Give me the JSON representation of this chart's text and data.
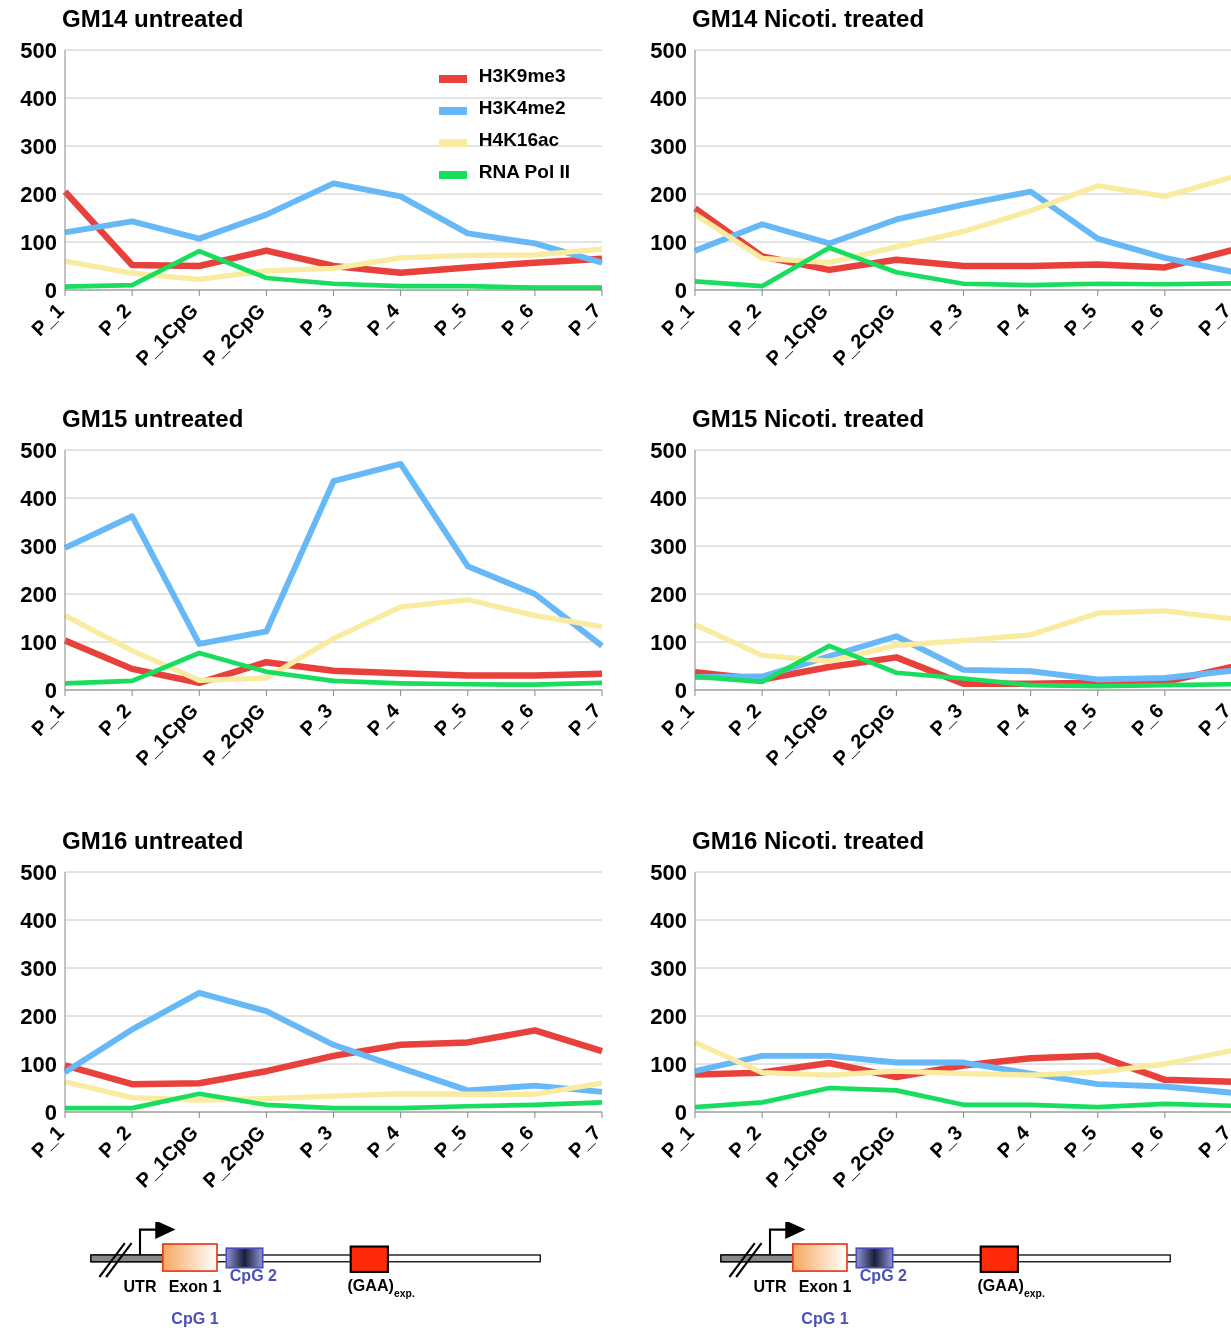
{
  "chart_data": [
    {
      "type": "line",
      "title": "GM14 untreated",
      "categories": [
        "P_1",
        "P_2",
        "P_1CpG",
        "P_2CpG",
        "P_3",
        "P_4",
        "P_5",
        "P_6",
        "P_7"
      ],
      "ylim": [
        0,
        500
      ],
      "yticks": [
        0,
        100,
        200,
        300,
        400,
        500
      ],
      "grid": "y",
      "legend": "top right",
      "series": [
        {
          "name": "H3K9me3",
          "color": "#e8413c",
          "values": [
            205,
            52,
            50,
            82,
            50,
            36,
            47,
            57,
            65
          ]
        },
        {
          "name": "H3K4me2",
          "color": "#66b8f7",
          "values": [
            120,
            143,
            107,
            157,
            222,
            195,
            118,
            97,
            57
          ]
        },
        {
          "name": "H4K16ac",
          "color": "#f9eba0",
          "values": [
            60,
            35,
            22,
            40,
            45,
            67,
            72,
            73,
            85
          ]
        },
        {
          "name": "RNA Pol II",
          "color": "#19dd5e",
          "values": [
            7,
            10,
            81,
            25,
            13,
            8,
            8,
            5,
            5
          ]
        }
      ]
    },
    {
      "type": "line",
      "title": "GM14 Nicoti. treated",
      "categories": [
        "P_1",
        "P_2",
        "P_1CpG",
        "P_2CpG",
        "P_3",
        "P_4",
        "P_5",
        "P_6",
        "P_7"
      ],
      "ylim": [
        0,
        500
      ],
      "yticks": [
        0,
        100,
        200,
        300,
        400,
        500
      ],
      "grid": "y",
      "series": [
        {
          "color": "#e8413c",
          "values": [
            170,
            70,
            42,
            63,
            50,
            50,
            53,
            47,
            83
          ]
        },
        {
          "color": "#66b8f7",
          "values": [
            82,
            137,
            97,
            147,
            178,
            205,
            107,
            67,
            38
          ]
        },
        {
          "color": "#f9eba0",
          "values": [
            158,
            66,
            57,
            90,
            122,
            165,
            217,
            195,
            235
          ]
        },
        {
          "color": "#19dd5e",
          "values": [
            18,
            8,
            88,
            37,
            13,
            10,
            13,
            12,
            14
          ]
        }
      ]
    },
    {
      "type": "line",
      "title": "GM15 untreated",
      "categories": [
        "P_1",
        "P_2",
        "P_1CpG",
        "P_2CpG",
        "P_3",
        "P_4",
        "P_5",
        "P_6",
        "P_7"
      ],
      "ylim": [
        0,
        500
      ],
      "yticks": [
        0,
        100,
        200,
        300,
        400,
        500
      ],
      "grid": "y",
      "series": [
        {
          "color": "#e8413c",
          "values": [
            103,
            44,
            15,
            58,
            40,
            35,
            30,
            30,
            34
          ]
        },
        {
          "color": "#66b8f7",
          "values": [
            296,
            362,
            96,
            122,
            435,
            471,
            258,
            200,
            92
          ]
        },
        {
          "color": "#f9eba0",
          "values": [
            155,
            82,
            20,
            25,
            107,
            173,
            188,
            155,
            132
          ]
        },
        {
          "color": "#19dd5e",
          "values": [
            14,
            19,
            77,
            38,
            19,
            14,
            12,
            11,
            15
          ]
        }
      ]
    },
    {
      "type": "line",
      "title": "GM15 Nicoti. treated",
      "categories": [
        "P_1",
        "P_2",
        "P_1CpG",
        "P_2CpG",
        "P_3",
        "P_4",
        "P_5",
        "P_6",
        "P_7"
      ],
      "ylim": [
        0,
        500
      ],
      "yticks": [
        0,
        100,
        200,
        300,
        400,
        500
      ],
      "grid": "y",
      "series": [
        {
          "color": "#e8413c",
          "values": [
            37,
            22,
            48,
            68,
            13,
            13,
            15,
            17,
            48
          ]
        },
        {
          "color": "#66b8f7",
          "values": [
            27,
            28,
            70,
            112,
            42,
            39,
            22,
            25,
            40
          ]
        },
        {
          "color": "#f9eba0",
          "values": [
            136,
            72,
            60,
            93,
            103,
            115,
            160,
            165,
            148
          ]
        },
        {
          "color": "#19dd5e",
          "values": [
            28,
            17,
            92,
            36,
            24,
            10,
            8,
            10,
            12
          ]
        }
      ]
    },
    {
      "type": "line",
      "title": "GM16 untreated",
      "categories": [
        "P_1",
        "P_2",
        "P_1CpG",
        "P_2CpG",
        "P_3",
        "P_4",
        "P_5",
        "P_6",
        "P_7"
      ],
      "ylim": [
        0,
        500
      ],
      "yticks": [
        0,
        100,
        200,
        300,
        400,
        500
      ],
      "grid": "y",
      "annotations": [
        "UTR",
        "Exon 1",
        "CpG 2",
        "(GAA)$_{exp.}$",
        "CpG 1"
      ],
      "series": [
        {
          "color": "#e8413c",
          "values": [
            97,
            58,
            60,
            85,
            117,
            140,
            145,
            170,
            127
          ]
        },
        {
          "color": "#66b8f7",
          "values": [
            83,
            172,
            248,
            210,
            140,
            92,
            45,
            55,
            42
          ]
        },
        {
          "color": "#f9eba0",
          "values": [
            63,
            30,
            25,
            28,
            33,
            38,
            37,
            37,
            60
          ]
        },
        {
          "color": "#19dd5e",
          "values": [
            8,
            8,
            38,
            15,
            8,
            8,
            12,
            15,
            20
          ]
        }
      ]
    },
    {
      "type": "line",
      "title": "GM16 Nicoti. treated",
      "categories": [
        "P_1",
        "P_2",
        "P_1CpG",
        "P_2CpG",
        "P_3",
        "P_4",
        "P_5",
        "P_6",
        "P_7"
      ],
      "ylim": [
        0,
        500
      ],
      "yticks": [
        0,
        100,
        200,
        300,
        400,
        500
      ],
      "grid": "y",
      "annotations": [
        "UTR",
        "Exon 1",
        "CpG 2",
        "(GAA)$_{exp.}$",
        "CpG 1"
      ],
      "series": [
        {
          "color": "#e8413c",
          "values": [
            78,
            82,
            102,
            73,
            97,
            112,
            117,
            67,
            63
          ]
        },
        {
          "color": "#66b8f7",
          "values": [
            85,
            117,
            117,
            103,
            103,
            80,
            58,
            53,
            40
          ]
        },
        {
          "color": "#f9eba0",
          "values": [
            145,
            82,
            77,
            85,
            80,
            77,
            83,
            100,
            128
          ]
        },
        {
          "color": "#19dd5e",
          "values": [
            10,
            20,
            50,
            45,
            15,
            15,
            10,
            17,
            13
          ]
        }
      ]
    }
  ]
}
